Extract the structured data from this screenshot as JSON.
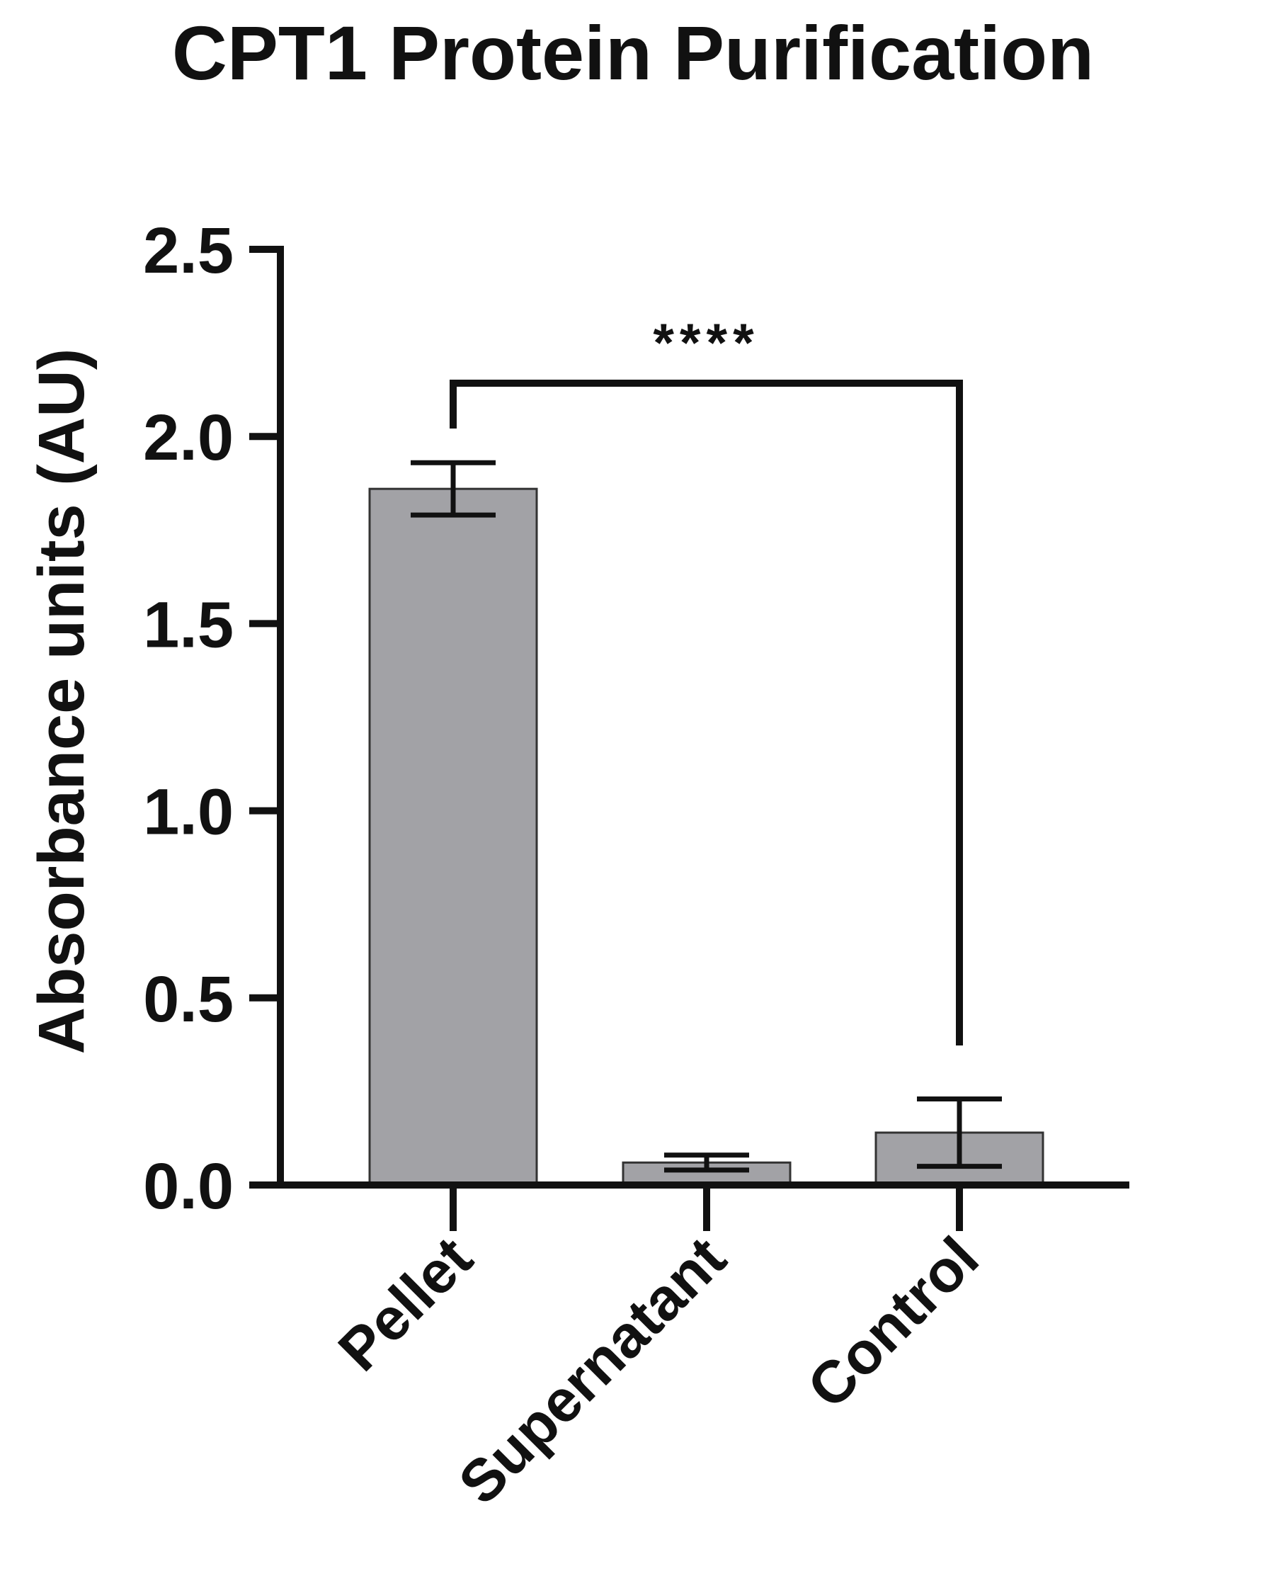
{
  "chart_data": {
    "type": "bar",
    "title": "CPT1 Protein Purification",
    "xlabel": "",
    "ylabel": "Absorbance units (AU)",
    "ylim": [
      0,
      2.5
    ],
    "yticks": [
      "0.0",
      "0.5",
      "1.0",
      "1.5",
      "2.0",
      "2.5"
    ],
    "categories": [
      "Pellet",
      "Supernatant",
      "Control"
    ],
    "values": [
      1.86,
      0.06,
      0.14
    ],
    "error": [
      0.07,
      0.02,
      0.09
    ],
    "bar_color": "#a2a2a6",
    "grid": false,
    "annotations": [
      {
        "text": "****",
        "from": "Pellet",
        "to": "Control"
      }
    ]
  }
}
